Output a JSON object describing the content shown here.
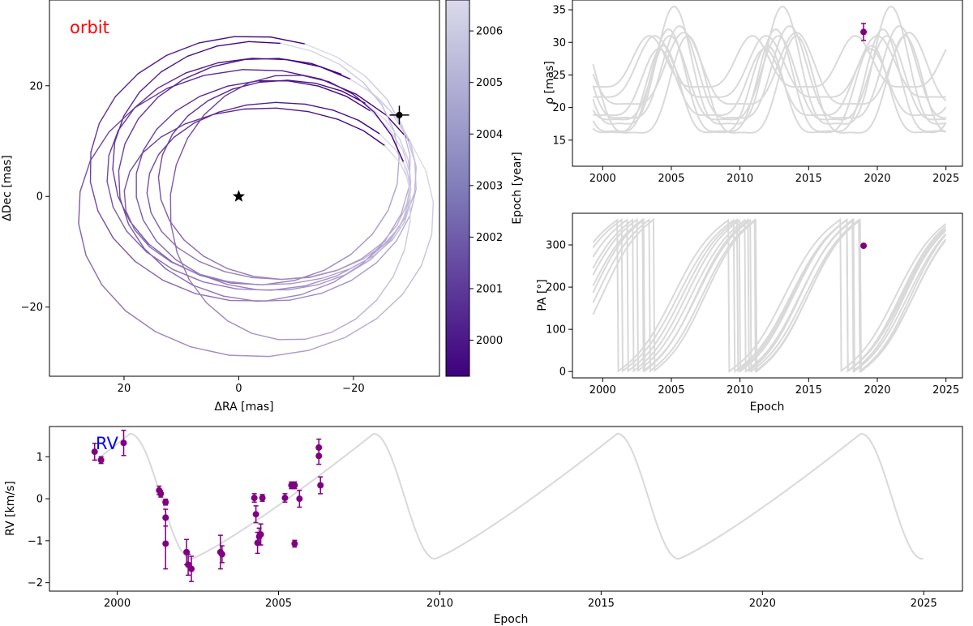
{
  "figure": {
    "colors": {
      "orbit_dark": "#3f007d",
      "orbit_light": "#dadaeb",
      "model": "#d9d9d9",
      "data": "#800080",
      "orbit_label": "#ff0000",
      "rv_label": "#0000ff"
    }
  },
  "chart_data": [
    {
      "type": "line",
      "panel": "orbit",
      "title": "orbit",
      "xlabel": "ΔRA [mas]",
      "ylabel": "ΔDec [mas]",
      "xlim": [
        33,
        -35
      ],
      "ylim": [
        -32.5,
        35.5
      ],
      "x_axis_inverted": true,
      "xticks": [
        20,
        0,
        -20
      ],
      "yticks": [
        20,
        0,
        -20
      ],
      "xtick_labels": [
        "20",
        "0",
        "−20"
      ],
      "ytick_labels": [
        "20",
        "0",
        "−20"
      ],
      "colorbar": {
        "label": "Epoch [year]",
        "range": [
          1999.3,
          2006.6
        ],
        "ticks": [
          2000,
          2001,
          2002,
          2003,
          2004,
          2005,
          2006
        ],
        "colormap": "purple sequential"
      },
      "star_marker": {
        "ra": 0,
        "dec": 0
      },
      "data_point": {
        "ra": -28,
        "dec": 14.7,
        "ra_err": 1.7,
        "dec_err": 1.7
      },
      "orbits": [
        {
          "center_ra": -3,
          "center_dec": -3,
          "semi_ra": 31,
          "semi_dec": 26,
          "start_deg": 150
        },
        {
          "center_ra": -5,
          "center_dec": 3,
          "semi_ra": 26,
          "semi_dec": 22,
          "start_deg": 120
        },
        {
          "center_ra": -2,
          "center_dec": 5,
          "semi_ra": 28,
          "semi_dec": 24,
          "start_deg": 110
        },
        {
          "center_ra": -4,
          "center_dec": 4,
          "semi_ra": 27,
          "semi_dec": 21,
          "start_deg": 125
        },
        {
          "center_ra": -6,
          "center_dec": 2,
          "semi_ra": 24,
          "semi_dec": 19,
          "start_deg": 135
        },
        {
          "center_ra": -7,
          "center_dec": 1,
          "semi_ra": 23,
          "semi_dec": 16,
          "start_deg": 140
        },
        {
          "center_ra": -3,
          "center_dec": 6,
          "semi_ra": 25,
          "semi_dec": 22,
          "start_deg": 100
        },
        {
          "center_ra": -8,
          "center_dec": 3,
          "semi_ra": 22,
          "semi_dec": 18,
          "start_deg": 130
        },
        {
          "center_ra": -5,
          "center_dec": 0,
          "semi_ra": 25,
          "semi_dec": 16,
          "start_deg": 145
        },
        {
          "center_ra": -9,
          "center_dec": -2,
          "semi_ra": 21,
          "semi_dec": 24,
          "start_deg": 160
        }
      ]
    },
    {
      "type": "line",
      "panel": "separation",
      "xlabel": "",
      "ylabel": "ρ [mas]",
      "xlim": [
        1997.8,
        2026.2
      ],
      "ylim": [
        11,
        36.5
      ],
      "xticks": [
        2000,
        2005,
        2010,
        2015,
        2020,
        2025
      ],
      "yticks": [
        15,
        20,
        25,
        30,
        35
      ],
      "model_start": 1999.3,
      "model_end": 2025,
      "model_curves": [
        {
          "mean": 24.0,
          "amp": 11.5,
          "period": 7.9,
          "peak_epoch": 2005.2
        },
        {
          "mean": 22.0,
          "amp": 10.0,
          "period": 7.8,
          "peak_epoch": 2004.8
        },
        {
          "mean": 23.5,
          "amp": 9.0,
          "period": 8.0,
          "peak_epoch": 2005.6
        },
        {
          "mean": 21.0,
          "amp": 8.5,
          "period": 7.6,
          "peak_epoch": 2004.4
        },
        {
          "mean": 24.5,
          "amp": 7.0,
          "period": 8.2,
          "peak_epoch": 2005.9
        },
        {
          "mean": 22.5,
          "amp": 6.5,
          "period": 7.7,
          "peak_epoch": 2004.1
        },
        {
          "mean": 21.5,
          "amp": 9.5,
          "period": 7.9,
          "peak_epoch": 2006.2
        },
        {
          "mean": 25.0,
          "amp": 6.0,
          "period": 8.1,
          "peak_epoch": 2003.8
        },
        {
          "mean": 26.0,
          "amp": 5.0,
          "period": 7.5,
          "peak_epoch": 2003.4
        },
        {
          "mean": 22.8,
          "amp": 8.2,
          "period": 7.9,
          "peak_epoch": 2004.9
        }
      ],
      "points": [
        {
          "epoch": 2019.0,
          "value": 31.6,
          "err": 1.3
        }
      ]
    },
    {
      "type": "line",
      "panel": "position_angle",
      "xlabel": "Epoch",
      "ylabel": "PA [°]",
      "xlim": [
        1997.8,
        2026.2
      ],
      "ylim": [
        -15,
        375
      ],
      "xticks": [
        2000,
        2005,
        2010,
        2015,
        2020,
        2025
      ],
      "yticks": [
        0,
        100,
        200,
        300
      ],
      "model_start": 1999.3,
      "model_end": 2025,
      "model_curves": [
        {
          "period": 7.9,
          "wrap_epoch": 2002.5
        },
        {
          "period": 7.8,
          "wrap_epoch": 2002.2
        },
        {
          "period": 8.0,
          "wrap_epoch": 2001.8
        },
        {
          "period": 7.6,
          "wrap_epoch": 2003.0
        },
        {
          "period": 8.2,
          "wrap_epoch": 2001.4
        },
        {
          "period": 7.7,
          "wrap_epoch": 2003.4
        },
        {
          "period": 7.9,
          "wrap_epoch": 2002.9
        },
        {
          "period": 8.1,
          "wrap_epoch": 2001.1
        },
        {
          "period": 7.5,
          "wrap_epoch": 2003.7
        }
      ],
      "points": [
        {
          "epoch": 2019.0,
          "value": 298
        }
      ]
    },
    {
      "type": "line",
      "panel": "rv",
      "title": "RV",
      "xlabel": "Epoch",
      "ylabel": "RV [km/s]",
      "xlim": [
        1997.9,
        2026.2
      ],
      "ylim": [
        -2.2,
        1.72
      ],
      "xticks": [
        2000,
        2005,
        2010,
        2015,
        2020,
        2025
      ],
      "yticks": [
        -2,
        -1,
        0,
        1
      ],
      "xtick_labels": [
        "2000",
        "2005",
        "2010",
        "2015",
        "2020",
        "2025"
      ],
      "ytick_labels": [
        "−2",
        "−1",
        "0",
        "1"
      ],
      "model_period": 7.55,
      "model_peak_epoch": 2000.4,
      "model_min_epoch": 2002.3,
      "model_peak_value": 1.55,
      "model_min_value": -1.43,
      "model_start": 1999.3,
      "model_end": 2025,
      "points": [
        {
          "epoch": 1999.3,
          "value": 1.12,
          "err": 0.2
        },
        {
          "epoch": 1999.5,
          "value": 0.92,
          "err": 0.08
        },
        {
          "epoch": 2000.2,
          "value": 1.33,
          "err": 0.3
        },
        {
          "epoch": 2001.3,
          "value": 0.2,
          "err": 0.1
        },
        {
          "epoch": 2001.35,
          "value": 0.12,
          "err": 0.08
        },
        {
          "epoch": 2001.5,
          "value": -0.08,
          "err": 0.07
        },
        {
          "epoch": 2001.5,
          "value": -0.45,
          "err": 0.2
        },
        {
          "epoch": 2001.5,
          "value": -1.07,
          "err": 0.6
        },
        {
          "epoch": 2002.15,
          "value": -1.27,
          "err": 0.3
        },
        {
          "epoch": 2002.2,
          "value": -1.57,
          "err": 0.25
        },
        {
          "epoch": 2002.3,
          "value": -1.67,
          "err": 0.3
        },
        {
          "epoch": 2003.2,
          "value": -1.27,
          "err": 0.4
        },
        {
          "epoch": 2003.25,
          "value": -1.32,
          "err": 0.2
        },
        {
          "epoch": 2004.25,
          "value": 0.02,
          "err": 0.1
        },
        {
          "epoch": 2004.3,
          "value": -0.37,
          "err": 0.2
        },
        {
          "epoch": 2004.35,
          "value": -1.05,
          "err": 0.25
        },
        {
          "epoch": 2004.4,
          "value": -0.9,
          "err": 0.2
        },
        {
          "epoch": 2004.45,
          "value": -0.85,
          "err": 0.25
        },
        {
          "epoch": 2004.5,
          "value": 0.02,
          "err": 0.08
        },
        {
          "epoch": 2005.2,
          "value": 0.02,
          "err": 0.1
        },
        {
          "epoch": 2005.4,
          "value": 0.32,
          "err": 0.08
        },
        {
          "epoch": 2005.5,
          "value": 0.32,
          "err": 0.08
        },
        {
          "epoch": 2005.5,
          "value": -1.07,
          "err": 0.08
        },
        {
          "epoch": 2005.65,
          "value": 0.0,
          "err": 0.2
        },
        {
          "epoch": 2006.25,
          "value": 1.22,
          "err": 0.2
        },
        {
          "epoch": 2006.25,
          "value": 1.02,
          "err": 0.2
        },
        {
          "epoch": 2006.3,
          "value": 0.32,
          "err": 0.2
        }
      ]
    }
  ]
}
